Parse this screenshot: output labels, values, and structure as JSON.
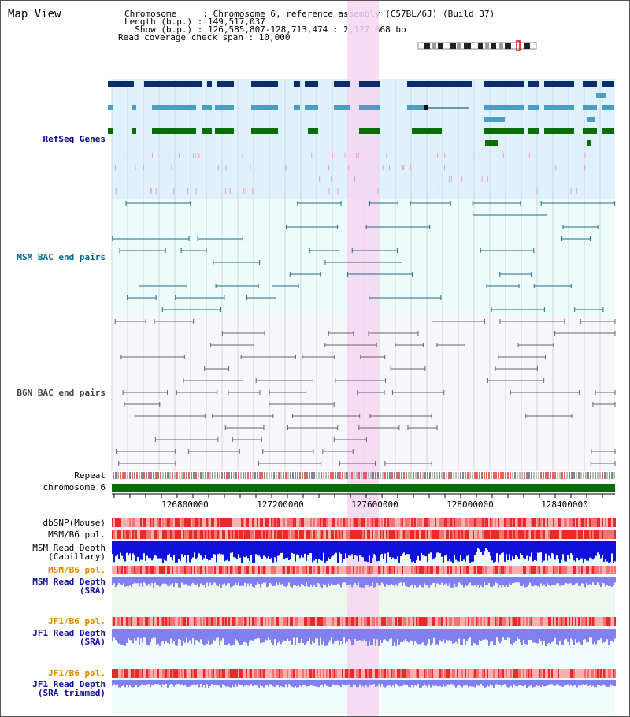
{
  "page_title": "Map View",
  "header": {
    "chromosome_line": "Chromosome     : Chromosome 6, reference assembly (C57BL/6J) (Build 37)",
    "length_line": "Length (b.p.) : 149,517,037",
    "show_line": "  Show (b.p.) : 126,585,807-128,713,474 : 2,127,668 bp",
    "coverage_line": "Read coverage check span : 10,000"
  },
  "tracks": {
    "refseq": "RefSeq Genes",
    "msm_bac": "MSM BAC end pairs",
    "b6n_bac": "B6N BAC end pairs",
    "repeat": "Repeat",
    "chromosome": "chromosome 6",
    "dbsnp": "dbSNP(Mouse)",
    "msm_b6_pol_1": "MSM/B6 pol.",
    "msm_read_depth_cap": "MSM Read Depth\n(Capillary)",
    "msm_b6_pol_2": "MSM/B6 pol.",
    "msm_read_depth_sra": "MSM Read Depth\n(SRA)",
    "jf1_b6_pol_1": "JF1/B6 pol.",
    "jf1_read_depth_sra": "JF1 Read Depth\n(SRA)",
    "jf1_b6_pol_2": "JF1/B6 pol.",
    "jf1_read_depth_trim": "JF1 Read Depth\n(SRA trimmed)"
  },
  "axis": {
    "ticks": [
      "126800000",
      "127200000",
      "127600000",
      "128000000",
      "128400000"
    ]
  },
  "colors": {
    "refseq_bg": "#dff1fb",
    "bac_bg": "#eefbfb",
    "b6n_bg": "#f6f6fb",
    "highlight": "#f7d6f1",
    "gene_navy": "#0c2d6b",
    "gene_teal": "#4a9ec4",
    "gene_green": "#0a6d0a",
    "chromosome_bar": "#0a6d0a",
    "depth_blue": "#1010dd",
    "depth_light": "#8080f0"
  }
}
